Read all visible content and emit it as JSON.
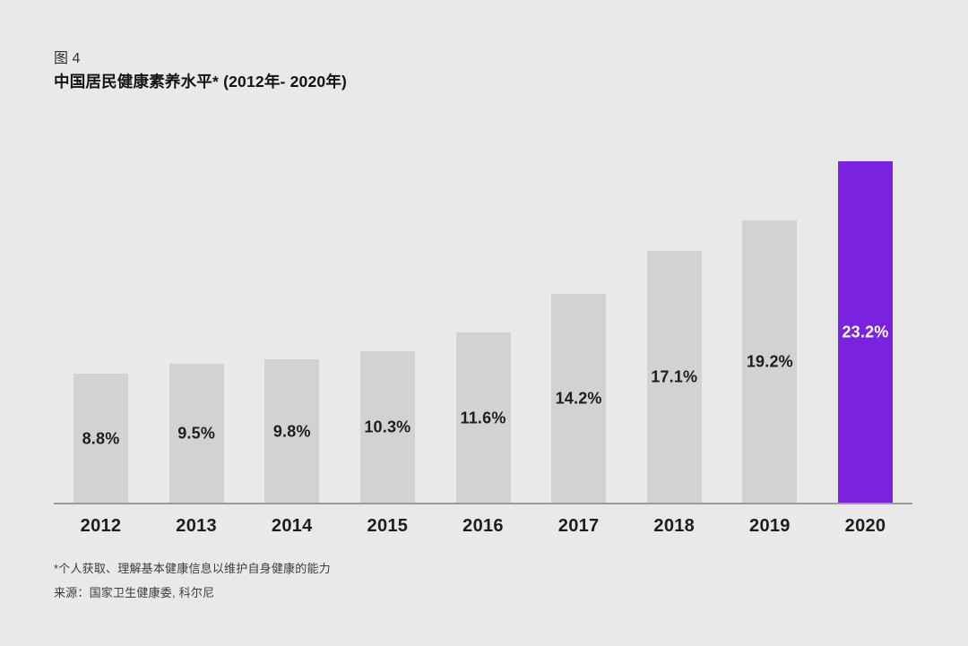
{
  "page": {
    "figure_label": "图 4",
    "title": "中国居民健康素养水平* (2012年- 2020年)",
    "footnote": "*个人获取、理解基本健康信息以维护自身健康的能力",
    "source": "来源：国家卫生健康委, 科尔尼"
  },
  "colors": {
    "background": "#e9e9e9",
    "bar_default": "#d2d2d2",
    "bar_highlight": "#7a22e0",
    "value_label": "#1d1d1d",
    "value_label_highlight": "#ffffff",
    "year_label": "#1d1d1d",
    "axis_line": "#9b9b9b"
  },
  "chart_data": {
    "type": "bar",
    "title": "中国居民健康素养水平* (2012年- 2020年)",
    "categories": [
      "2012",
      "2013",
      "2014",
      "2015",
      "2016",
      "2017",
      "2018",
      "2019",
      "2020"
    ],
    "values": [
      8.8,
      9.5,
      9.8,
      10.3,
      11.6,
      14.2,
      17.1,
      19.2,
      23.2
    ],
    "value_labels": [
      "8.8%",
      "9.5%",
      "9.8%",
      "10.3%",
      "11.6%",
      "14.2%",
      "17.1%",
      "19.2%",
      "23.2%"
    ],
    "highlight_index": 8,
    "xlabel": "",
    "ylabel": "",
    "ylim": [
      0,
      23.2
    ],
    "grid": false,
    "legend": false,
    "value_label_position": "inside-center",
    "orientation": "vertical"
  }
}
